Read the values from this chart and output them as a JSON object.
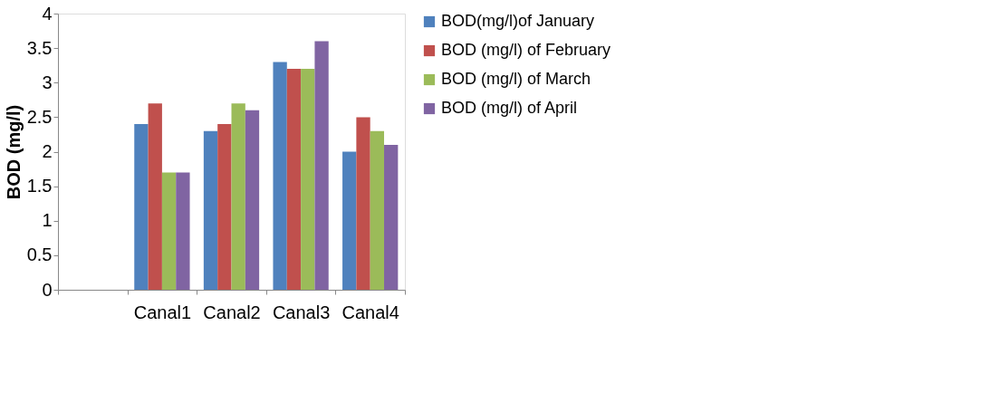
{
  "chart_data": {
    "type": "bar",
    "ylabel": "BOD  (mg/l)",
    "categories": [
      null,
      "Canal1",
      "Canal2",
      "Canal3",
      "Canal4"
    ],
    "series": [
      {
        "name": "BOD(mg/l)of January",
        "color": "#4f81bd",
        "values": [
          null,
          2.4,
          2.3,
          3.3,
          2.0
        ]
      },
      {
        "name": "BOD (mg/l) of February",
        "color": "#c0504d",
        "values": [
          null,
          2.7,
          2.4,
          3.2,
          2.5
        ]
      },
      {
        "name": "BOD (mg/l) of March",
        "color": "#9bbb59",
        "values": [
          null,
          1.7,
          2.7,
          3.2,
          2.3
        ]
      },
      {
        "name": "BOD (mg/l) of April",
        "color": "#8064a2",
        "values": [
          null,
          1.7,
          2.6,
          3.6,
          2.1
        ]
      }
    ],
    "ylim": [
      0,
      4
    ],
    "yticks": [
      0,
      0.5,
      1,
      1.5,
      2,
      2.5,
      3,
      3.5,
      4
    ],
    "grid": false,
    "legend": "right"
  }
}
